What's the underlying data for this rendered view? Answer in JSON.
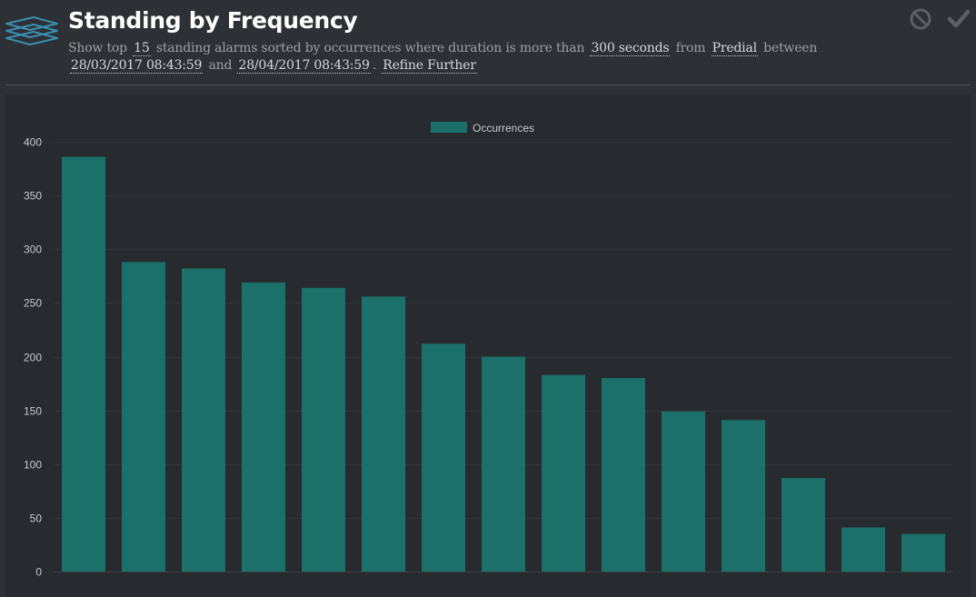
{
  "header": {
    "title": "Standing by Frequency",
    "desc": {
      "t1": "Show top",
      "top_n": "15",
      "t2": "standing alarms sorted by occurrences where duration is more than",
      "duration": "300 seconds",
      "t3": "from",
      "source": "Predial",
      "t4": "between",
      "start_date": "28/03/2017 08:43:59",
      "t5": "and",
      "end_date": "28/04/2017 08:43:59",
      "t6": ".",
      "refine": "Refine Further"
    },
    "icons": {
      "logo": "layers-icon",
      "cancel": "cancel-icon",
      "confirm": "checkmark-icon"
    }
  },
  "colors": {
    "bar": "#1b7069",
    "background": "#2d3035",
    "chart_background": "#272b30"
  },
  "chart_data": {
    "type": "bar",
    "legend": "Occurrences",
    "legend_position": "top-center",
    "grid": true,
    "ylim": [
      0,
      400
    ],
    "yticks": [
      0,
      50,
      100,
      150,
      200,
      250,
      300,
      350,
      400
    ],
    "series": [
      {
        "name": "Occurrences",
        "values": [
          386,
          288,
          282,
          269,
          264,
          256,
          212,
          200,
          183,
          180,
          149,
          141,
          87,
          41,
          35
        ]
      }
    ]
  }
}
